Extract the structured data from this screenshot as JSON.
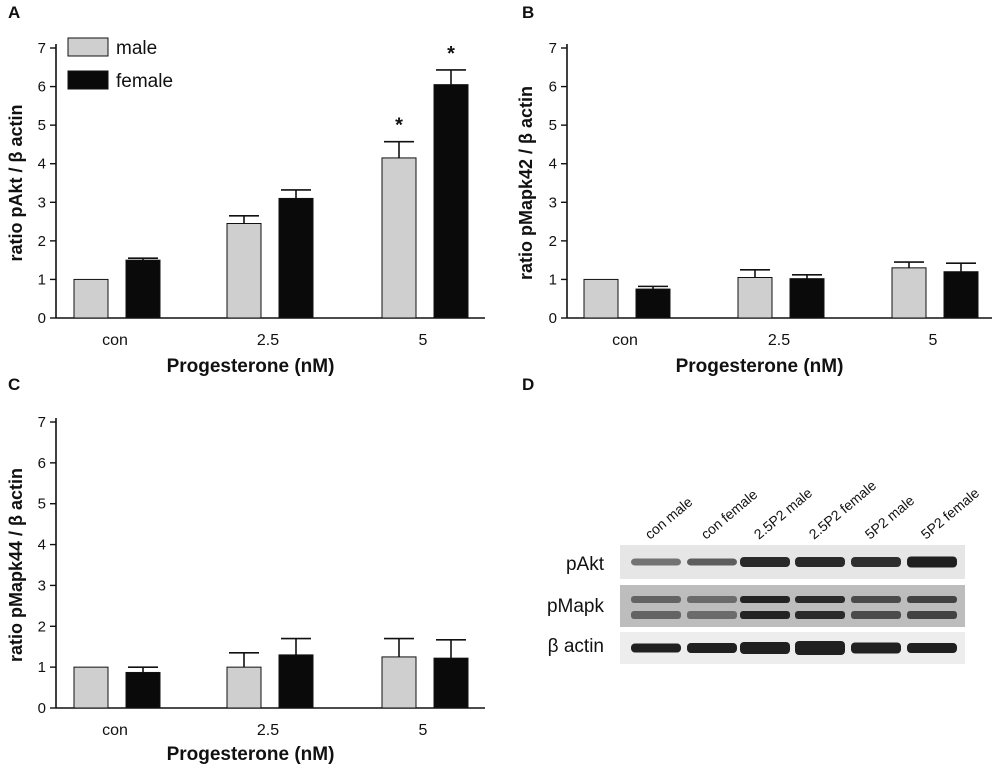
{
  "panels": {
    "A": {
      "letter": "A"
    },
    "B": {
      "letter": "B"
    },
    "C": {
      "letter": "C"
    },
    "D": {
      "letter": "D"
    }
  },
  "colors": {
    "male": "#cfcfcf",
    "female": "#0a0a0a",
    "axis": "#111111"
  },
  "chart_data": [
    {
      "panel": "A",
      "type": "bar",
      "categories": [
        "con",
        "2.5",
        "5"
      ],
      "series": [
        {
          "name": "male",
          "values": [
            1.0,
            2.45,
            4.15
          ],
          "errors": [
            0,
            0.2,
            0.42
          ]
        },
        {
          "name": "female",
          "values": [
            1.5,
            3.1,
            6.05
          ],
          "errors": [
            0.05,
            0.22,
            0.38
          ]
        }
      ],
      "significance": [
        {
          "category": "5",
          "series": "male",
          "mark": "*"
        },
        {
          "category": "5",
          "series": "female",
          "mark": "*"
        }
      ],
      "xlabel": "Progesterone (nM)",
      "ylabel": "ratio  pAkt / β actin",
      "ylim": [
        0,
        7
      ],
      "yticks": [
        0,
        1,
        2,
        3,
        4,
        5,
        6,
        7
      ],
      "legend": "top-left"
    },
    {
      "panel": "B",
      "type": "bar",
      "categories": [
        "con",
        "2.5",
        "5"
      ],
      "series": [
        {
          "name": "male",
          "values": [
            1.0,
            1.05,
            1.3
          ],
          "errors": [
            0,
            0.2,
            0.15
          ]
        },
        {
          "name": "female",
          "values": [
            0.75,
            1.02,
            1.2
          ],
          "errors": [
            0.07,
            0.1,
            0.22
          ]
        }
      ],
      "xlabel": "Progesterone (nM)",
      "ylabel": "ratio  pMapk42 / β actin",
      "ylim": [
        0,
        7
      ],
      "yticks": [
        0,
        1,
        2,
        3,
        4,
        5,
        6,
        7
      ]
    },
    {
      "panel": "C",
      "type": "bar",
      "categories": [
        "con",
        "2.5",
        "5"
      ],
      "series": [
        {
          "name": "male",
          "values": [
            1.0,
            1.0,
            1.25
          ],
          "errors": [
            0,
            0.35,
            0.45
          ]
        },
        {
          "name": "female",
          "values": [
            0.87,
            1.3,
            1.22
          ],
          "errors": [
            0.13,
            0.4,
            0.45
          ]
        }
      ],
      "xlabel": "Progesterone (nM)",
      "ylabel": "ratio  pMapk44 / β actin",
      "ylim": [
        0,
        7
      ],
      "yticks": [
        0,
        1,
        2,
        3,
        4,
        5,
        6,
        7
      ]
    }
  ],
  "blot": {
    "lanes": [
      "con male",
      "con female",
      "2.5P2 male",
      "2.5P2 female",
      "5P2 male",
      "5P2 female"
    ],
    "rows": [
      "pAkt",
      "pMapk",
      "β actin"
    ]
  }
}
